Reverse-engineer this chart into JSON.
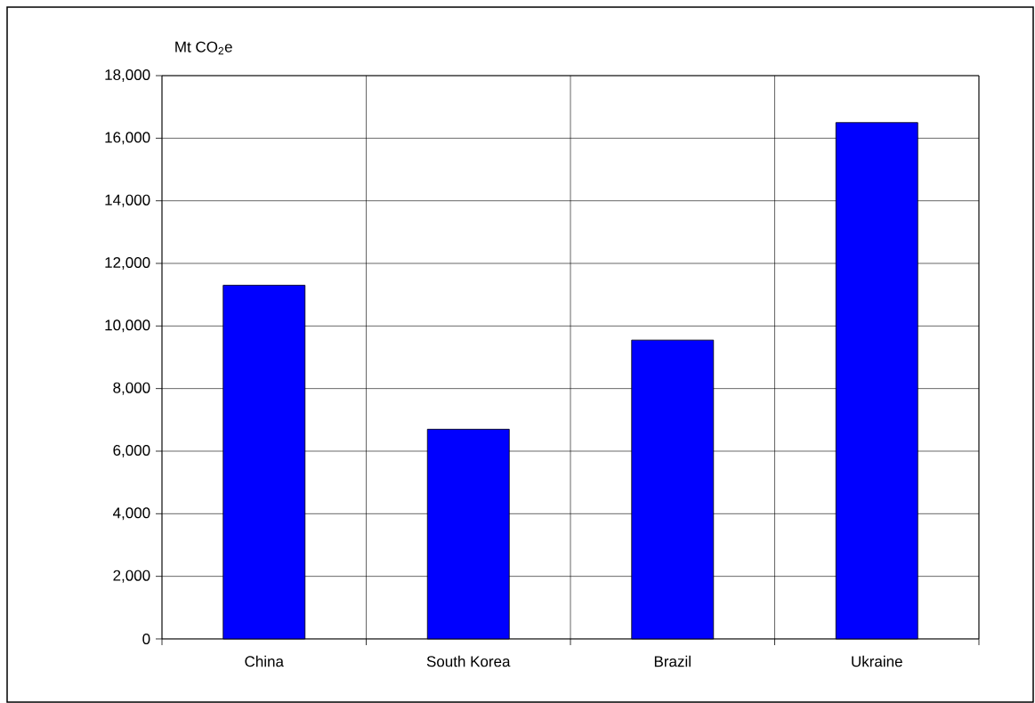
{
  "chart_data": {
    "type": "bar",
    "ylabel": "Mt CO$_{2}$e",
    "categories": [
      "China",
      "South Korea",
      "Brazil",
      "Ukraine"
    ],
    "values": [
      11300,
      6700,
      9550,
      16500
    ],
    "color": "#0000ff",
    "ylim": [
      0,
      18000
    ],
    "yticks": [
      {
        "value": 0,
        "label": "0"
      },
      {
        "value": 2000,
        "label": "2,000"
      },
      {
        "value": 4000,
        "label": "4,000"
      },
      {
        "value": 6000,
        "label": "6,000"
      },
      {
        "value": 8000,
        "label": "8,000"
      },
      {
        "value": 10000,
        "label": "10,000"
      },
      {
        "value": 12000,
        "label": "12,000"
      },
      {
        "value": 14000,
        "label": "14,000"
      },
      {
        "value": 16000,
        "label": "16,000"
      },
      {
        "value": 18000,
        "label": "18,000"
      }
    ],
    "grid": true
  }
}
